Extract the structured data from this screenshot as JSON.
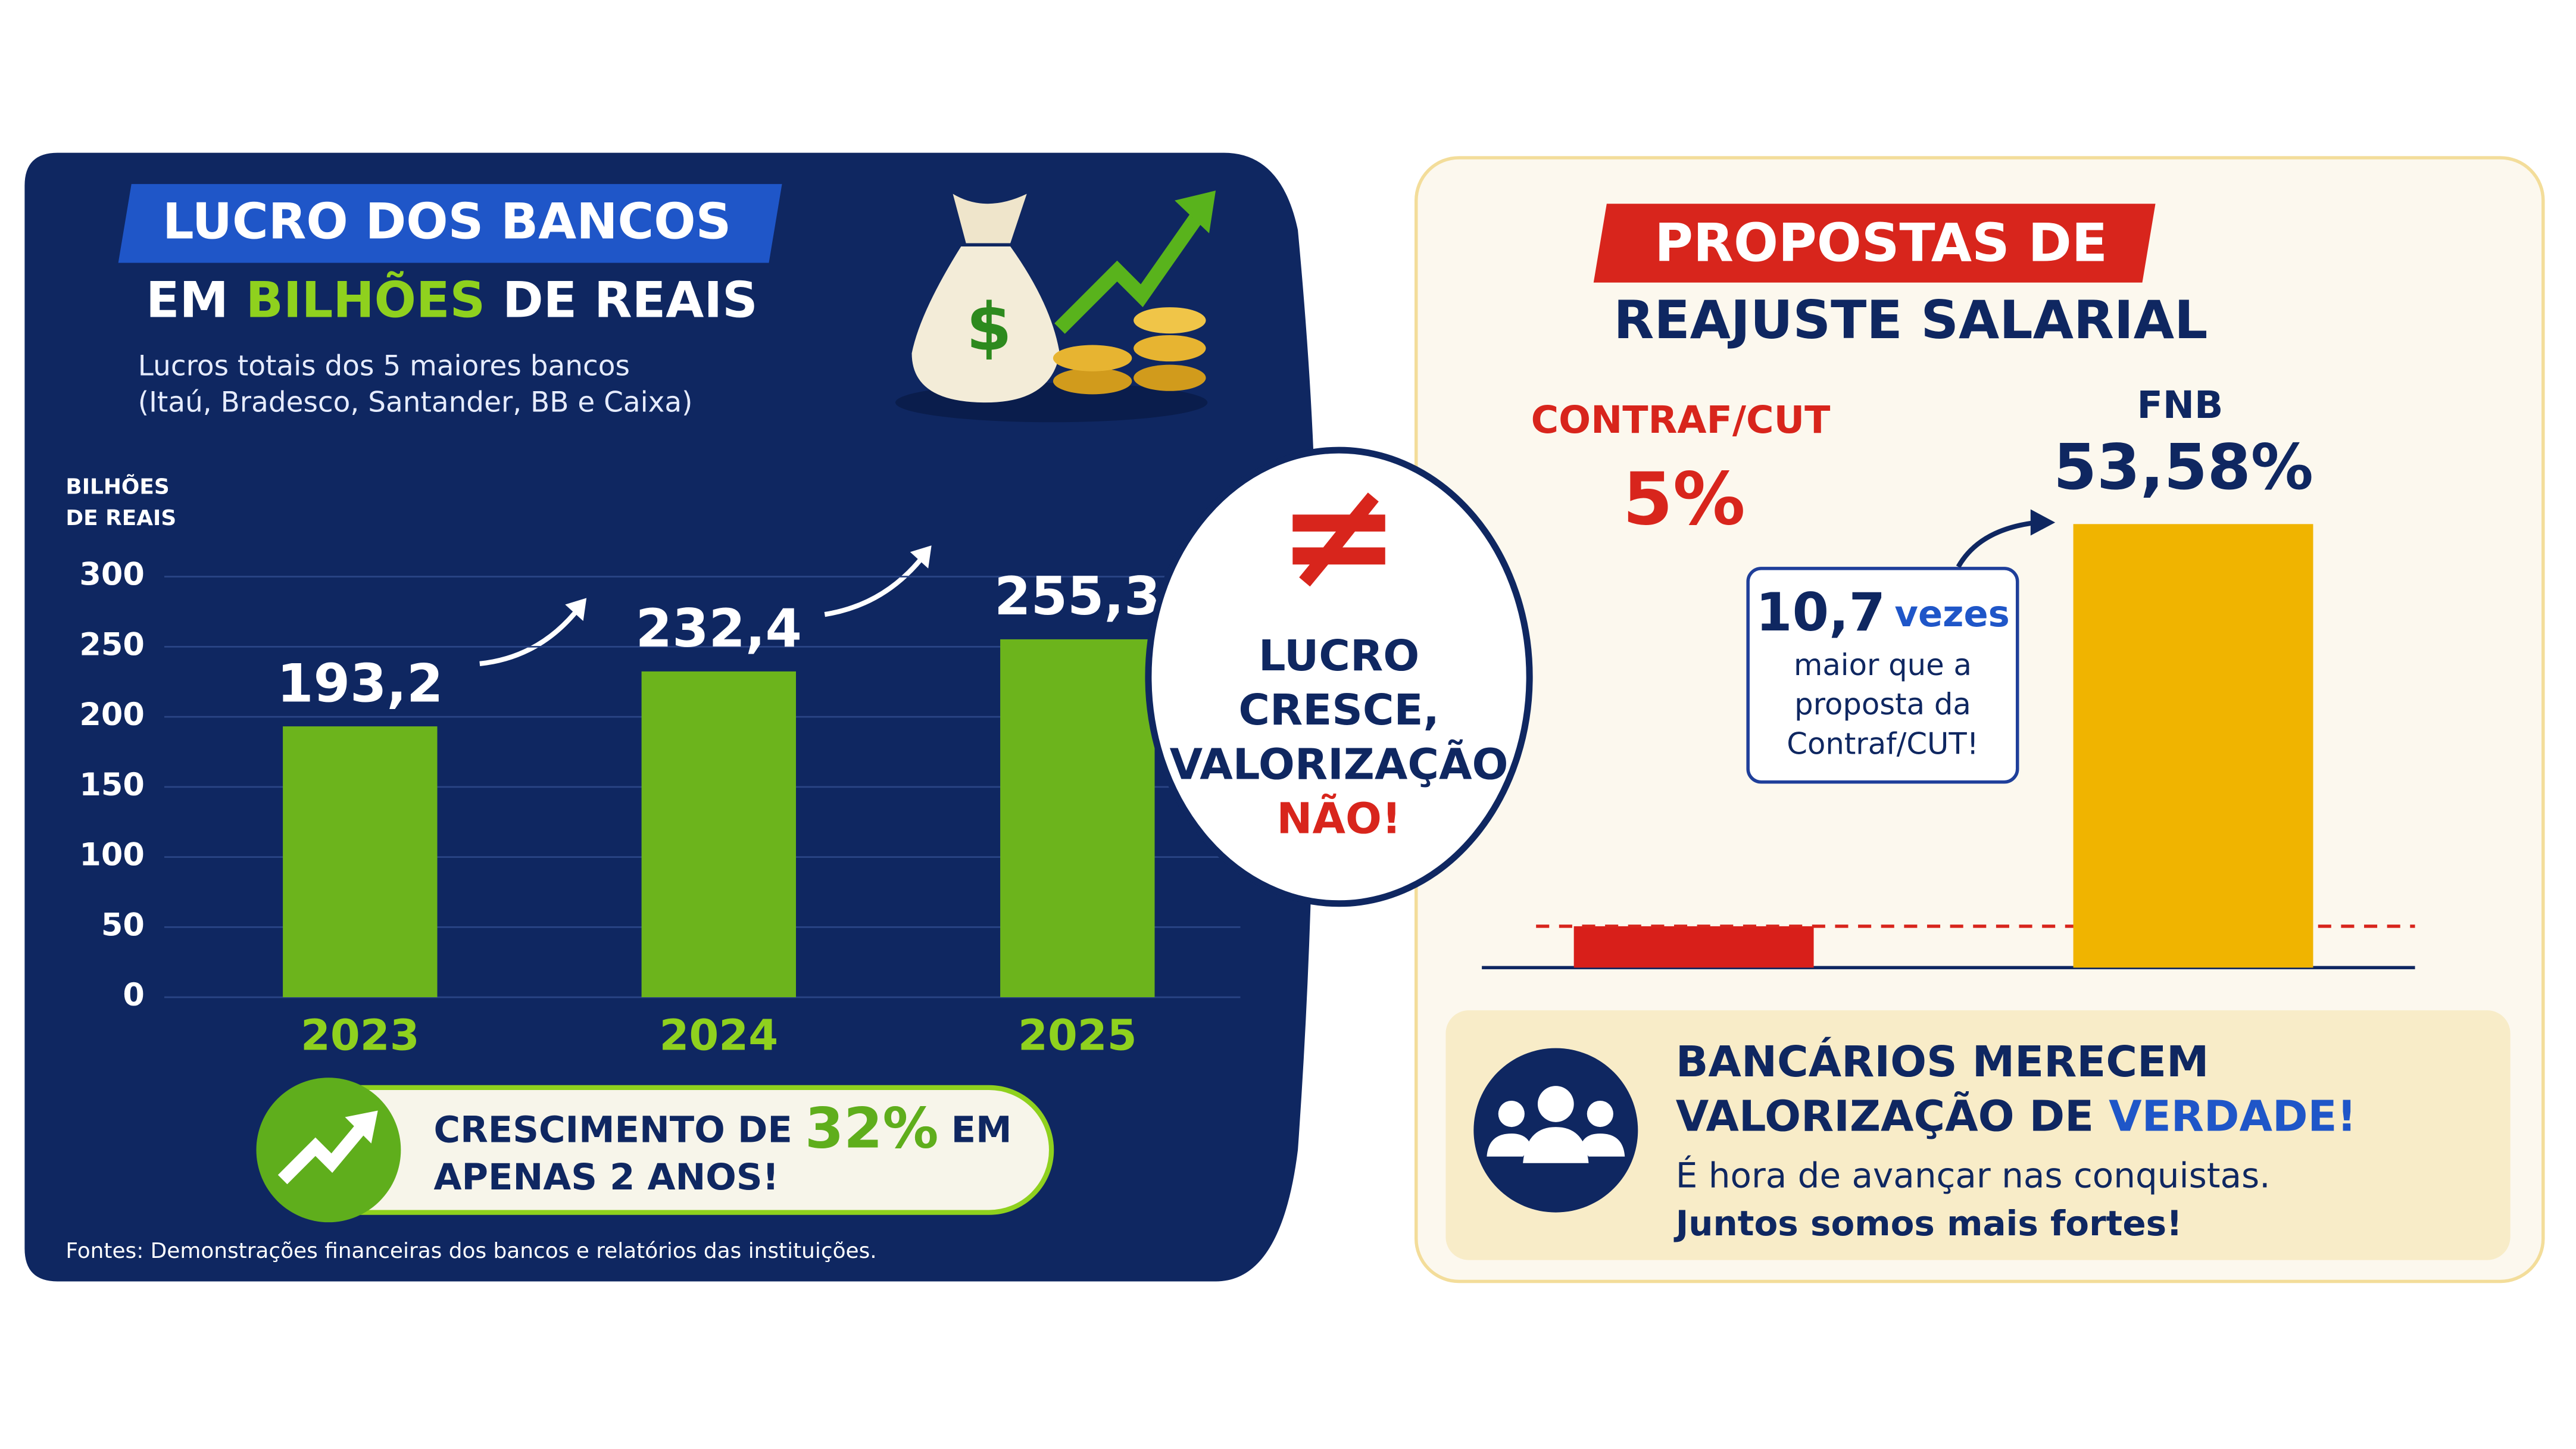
{
  "chart_data": [
    {
      "type": "bar",
      "title": "LUCRO DOS BANCOS",
      "title_line2": {
        "prefix": "EM",
        "highlight": "BILHÕES",
        "suffix": "DE REAIS"
      },
      "subtitle": [
        "Lucros totais dos 5 maiores bancos",
        "(Itaú, Bradesco, Santander, BB e Caixa)"
      ],
      "ylabel": [
        "BILHÕES",
        "DE REAIS"
      ],
      "categories": [
        "2023",
        "2024",
        "2025"
      ],
      "values": [
        193.2,
        232.4,
        255.3
      ],
      "value_labels": [
        "193,2",
        "232,4",
        "255,3"
      ],
      "color": "#6cb41c",
      "ylim": [
        0,
        300
      ],
      "yticks": [
        0,
        50,
        100,
        150,
        200,
        250,
        300
      ],
      "grid": true,
      "annotation": {
        "prefix": "CRESCIMENTO DE",
        "highlight": "32%",
        "suffix": "EM",
        "line2": "APENAS 2 ANOS!"
      },
      "source": "Fontes: Demonstrações financeiras dos bancos e relatórios das instituições."
    },
    {
      "type": "bar",
      "title": [
        "PROPOSTAS DE",
        "REAJUSTE SALARIAL"
      ],
      "categories": [
        "CONTRAF/CUT",
        "FNB"
      ],
      "values": [
        5,
        53.58
      ],
      "value_labels": [
        "5%",
        "53,58%"
      ],
      "colors": [
        "#d81f1a",
        "#f0b400"
      ],
      "annotation": {
        "number": "10,7",
        "unit": "vezes",
        "lines": [
          "maior que a",
          "proposta da",
          "Contraf/CUT!"
        ]
      }
    }
  ],
  "center_badge": {
    "symbol": "≠",
    "lines": [
      "LUCRO",
      "CRESCE,",
      "VALORIZAÇÃO"
    ],
    "emphasis": "NÃO!"
  },
  "footer_banner": {
    "line1": "BANCÁRIOS MERECEM",
    "line2": "VALORIZAÇÃO DE",
    "highlight": "VERDADE!",
    "text": [
      "É hora de avançar nas conquistas.",
      "Juntos somos mais fortes!"
    ]
  }
}
